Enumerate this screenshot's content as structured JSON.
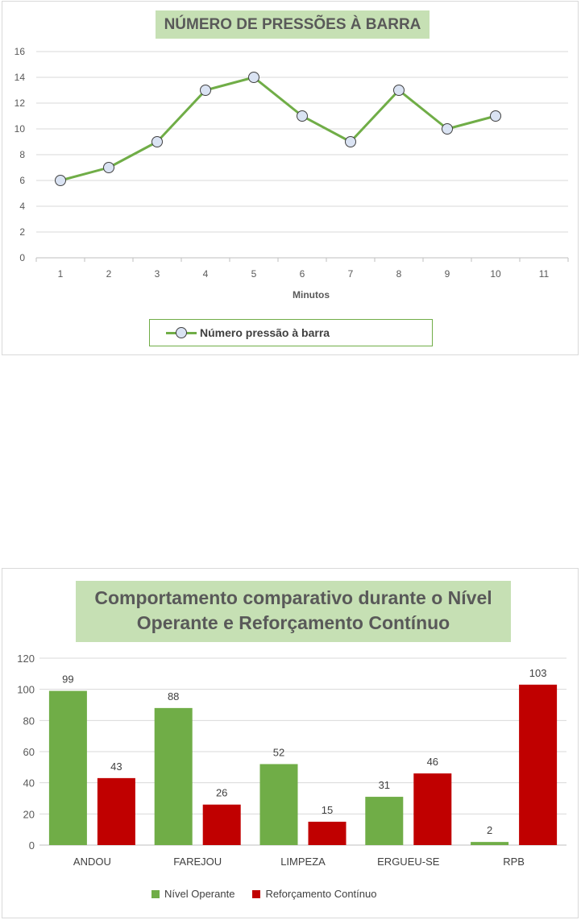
{
  "charts": [
    {
      "title": "NÚMERO DE PRESSÕES À BARRA",
      "xlabel": "Minutos",
      "legend": "Número pressão à barra"
    },
    {
      "title_line1": "Comportamento comparativo durante o Nível",
      "title_line2": "Operante e Reforçamento Contínuo",
      "legend": [
        "Nível Operante",
        "Reforçamento Contínuo"
      ]
    }
  ],
  "chart_data": [
    {
      "type": "line",
      "title": "NÚMERO DE PRESSÕES À BARRA",
      "xlabel": "Minutos",
      "ylabel": "",
      "x": [
        1,
        2,
        3,
        4,
        5,
        6,
        7,
        8,
        9,
        10,
        11
      ],
      "series": [
        {
          "name": "Número pressão à barra",
          "values": [
            6,
            7,
            9,
            13,
            14,
            11,
            9,
            13,
            10,
            11,
            null
          ],
          "color": "#70ad47",
          "marker_fill": "#dae3f3"
        }
      ],
      "ylim": [
        0,
        16
      ],
      "yticks": [
        0,
        2,
        4,
        6,
        8,
        10,
        12,
        14,
        16
      ],
      "grid": true,
      "legend_position": "bottom"
    },
    {
      "type": "bar",
      "title": "Comportamento comparativo durante o Nível Operante e Reforçamento Contínuo",
      "categories": [
        "ANDOU",
        "FAREJOU",
        "LIMPEZA",
        "ERGUEU-SE",
        "RPB"
      ],
      "series": [
        {
          "name": "Nível Operante",
          "values": [
            99,
            88,
            52,
            31,
            2
          ],
          "color": "#70ad47"
        },
        {
          "name": "Reforçamento Contínuo",
          "values": [
            43,
            26,
            15,
            46,
            103
          ],
          "color": "#c00000"
        }
      ],
      "ylim": [
        0,
        120
      ],
      "yticks": [
        0,
        20,
        40,
        60,
        80,
        100,
        120
      ],
      "grid": true,
      "data_labels": true,
      "legend_position": "bottom"
    }
  ]
}
